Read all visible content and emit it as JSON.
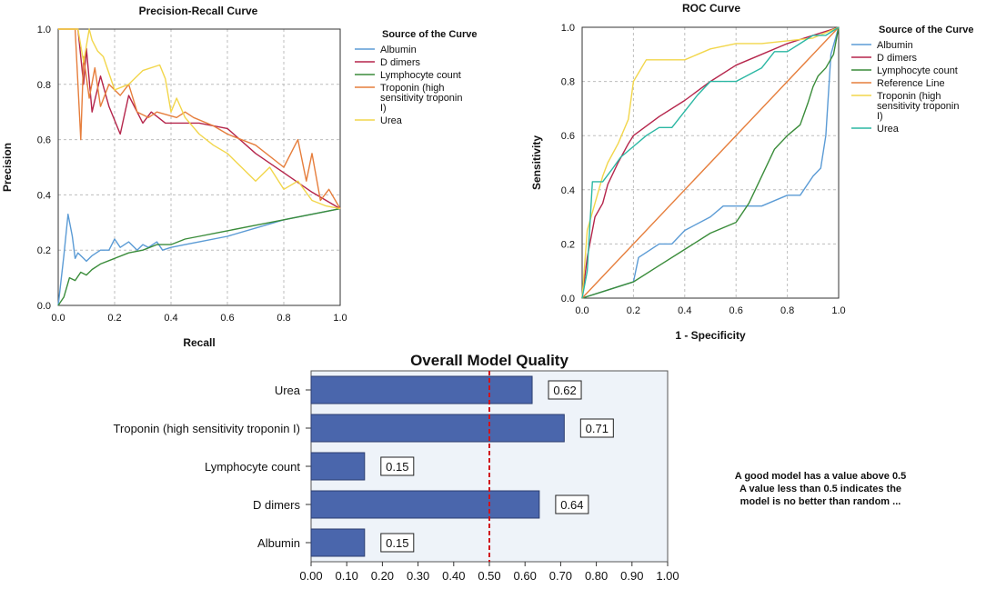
{
  "chart_data": [
    {
      "type": "line",
      "title": "Precision-Recall Curve",
      "xlabel": "Recall",
      "ylabel": "Precision",
      "xlim": [
        0,
        1
      ],
      "ylim": [
        0,
        1
      ],
      "xticks": [
        "0.0",
        "0.2",
        "0.4",
        "0.6",
        "0.8",
        "1.0"
      ],
      "yticks": [
        "0.0",
        "0.2",
        "0.4",
        "0.6",
        "0.8",
        "1.0"
      ],
      "legend_title": "Source of the Curve",
      "legend": [
        "Albumin",
        "D dimers",
        "Lymphocyte count",
        "Troponin (high sensitivity troponin I)",
        "Urea"
      ],
      "series": [
        {
          "name": "Albumin",
          "color": "#5b9bd5",
          "x": [
            0,
            0.02,
            0.035,
            0.05,
            0.06,
            0.07,
            0.09,
            0.1,
            0.12,
            0.15,
            0.18,
            0.2,
            0.22,
            0.25,
            0.28,
            0.3,
            0.32,
            0.35,
            0.37,
            0.4,
            0.45,
            0.5,
            0.6,
            0.7,
            0.8,
            0.9,
            1.0
          ],
          "y": [
            0,
            0.18,
            0.33,
            0.25,
            0.17,
            0.19,
            0.17,
            0.16,
            0.18,
            0.2,
            0.2,
            0.24,
            0.21,
            0.23,
            0.2,
            0.22,
            0.21,
            0.23,
            0.2,
            0.21,
            0.22,
            0.23,
            0.25,
            0.28,
            0.31,
            0.33,
            0.35
          ]
        },
        {
          "name": "D dimers",
          "color": "#b5254b",
          "x": [
            0,
            0.07,
            0.09,
            0.1,
            0.12,
            0.15,
            0.18,
            0.22,
            0.25,
            0.3,
            0.33,
            0.38,
            0.45,
            0.5,
            0.6,
            0.7,
            0.8,
            0.9,
            1.0
          ],
          "y": [
            1.0,
            1.0,
            0.8,
            0.93,
            0.7,
            0.83,
            0.72,
            0.62,
            0.76,
            0.66,
            0.7,
            0.66,
            0.66,
            0.66,
            0.64,
            0.55,
            0.48,
            0.41,
            0.35
          ]
        },
        {
          "name": "Lymphocyte count",
          "color": "#3a8c3a",
          "x": [
            0,
            0.02,
            0.04,
            0.06,
            0.08,
            0.1,
            0.12,
            0.15,
            0.2,
            0.25,
            0.3,
            0.35,
            0.4,
            0.45,
            0.5,
            0.6,
            0.7,
            0.8,
            0.9,
            1.0
          ],
          "y": [
            0,
            0.03,
            0.1,
            0.09,
            0.12,
            0.11,
            0.13,
            0.15,
            0.17,
            0.19,
            0.2,
            0.22,
            0.22,
            0.24,
            0.25,
            0.27,
            0.29,
            0.31,
            0.33,
            0.35
          ]
        },
        {
          "name": "Troponin (high sensitivity troponin I)",
          "color": "#e67e3c",
          "x": [
            0,
            0.06,
            0.08,
            0.09,
            0.11,
            0.13,
            0.15,
            0.18,
            0.22,
            0.25,
            0.28,
            0.32,
            0.35,
            0.42,
            0.45,
            0.48,
            0.55,
            0.6,
            0.7,
            0.8,
            0.85,
            0.88,
            0.9,
            0.93,
            0.96,
            1.0
          ],
          "y": [
            1.0,
            1.0,
            0.6,
            0.9,
            0.75,
            0.86,
            0.72,
            0.8,
            0.76,
            0.8,
            0.7,
            0.68,
            0.7,
            0.68,
            0.7,
            0.68,
            0.65,
            0.62,
            0.58,
            0.5,
            0.6,
            0.45,
            0.55,
            0.38,
            0.42,
            0.35
          ]
        },
        {
          "name": "Urea",
          "color": "#f2d64b",
          "x": [
            0,
            0.07,
            0.09,
            0.11,
            0.12,
            0.14,
            0.16,
            0.2,
            0.25,
            0.3,
            0.36,
            0.38,
            0.4,
            0.42,
            0.45,
            0.5,
            0.55,
            0.6,
            0.65,
            0.7,
            0.75,
            0.8,
            0.85,
            0.9,
            0.95,
            1.0
          ],
          "y": [
            1.0,
            1.0,
            0.88,
            1.0,
            0.96,
            0.92,
            0.9,
            0.78,
            0.8,
            0.85,
            0.87,
            0.82,
            0.7,
            0.75,
            0.68,
            0.62,
            0.58,
            0.55,
            0.5,
            0.45,
            0.5,
            0.42,
            0.45,
            0.38,
            0.36,
            0.35
          ]
        }
      ]
    },
    {
      "type": "line",
      "title": "ROC Curve",
      "xlabel": "1 - Specificity",
      "ylabel": "Sensitivity",
      "xlim": [
        0,
        1
      ],
      "ylim": [
        0,
        1
      ],
      "xticks": [
        "0.0",
        "0.2",
        "0.4",
        "0.6",
        "0.8",
        "1.0"
      ],
      "yticks": [
        "0.0",
        "0.2",
        "0.4",
        "0.6",
        "0.8",
        "1.0"
      ],
      "legend_title": "Source of the Curve",
      "legend": [
        "Albumin",
        "D dimers",
        "Lymphocyte count",
        "Reference Line",
        "Troponin (high sensitivity troponin I)",
        "Urea"
      ],
      "series": [
        {
          "name": "Albumin",
          "color": "#5b9bd5",
          "x": [
            0,
            0.1,
            0.2,
            0.22,
            0.3,
            0.35,
            0.4,
            0.5,
            0.55,
            0.6,
            0.7,
            0.8,
            0.85,
            0.9,
            0.93,
            0.95,
            0.97,
            1.0
          ],
          "y": [
            0,
            0.03,
            0.06,
            0.15,
            0.2,
            0.2,
            0.25,
            0.3,
            0.34,
            0.34,
            0.34,
            0.38,
            0.38,
            0.45,
            0.48,
            0.6,
            0.9,
            1.0
          ]
        },
        {
          "name": "D dimers",
          "color": "#b5254b",
          "x": [
            0,
            0.02,
            0.05,
            0.08,
            0.1,
            0.14,
            0.18,
            0.2,
            0.3,
            0.4,
            0.5,
            0.6,
            0.7,
            0.8,
            0.9,
            1.0
          ],
          "y": [
            0,
            0.15,
            0.3,
            0.35,
            0.42,
            0.5,
            0.57,
            0.6,
            0.67,
            0.73,
            0.8,
            0.86,
            0.9,
            0.94,
            0.97,
            1.0
          ]
        },
        {
          "name": "Lymphocyte count",
          "color": "#3a8c3a",
          "x": [
            0,
            0.1,
            0.2,
            0.3,
            0.4,
            0.5,
            0.6,
            0.65,
            0.7,
            0.75,
            0.8,
            0.85,
            0.88,
            0.9,
            0.92,
            0.95,
            0.98,
            1.0
          ],
          "y": [
            0,
            0.03,
            0.06,
            0.12,
            0.18,
            0.24,
            0.28,
            0.35,
            0.45,
            0.55,
            0.6,
            0.64,
            0.72,
            0.78,
            0.82,
            0.85,
            0.9,
            1.0
          ]
        },
        {
          "name": "Reference Line",
          "color": "#e67e3c",
          "x": [
            0,
            1
          ],
          "y": [
            0,
            1
          ]
        },
        {
          "name": "Troponin (high sensitivity troponin I)",
          "color": "#f2d64b",
          "x": [
            0,
            0.02,
            0.05,
            0.08,
            0.1,
            0.14,
            0.18,
            0.2,
            0.25,
            0.3,
            0.35,
            0.4,
            0.45,
            0.5,
            0.6,
            0.7,
            0.8,
            0.9,
            1.0
          ],
          "y": [
            0,
            0.25,
            0.35,
            0.45,
            0.5,
            0.57,
            0.66,
            0.8,
            0.88,
            0.88,
            0.88,
            0.88,
            0.9,
            0.92,
            0.94,
            0.94,
            0.95,
            0.96,
            1.0
          ]
        },
        {
          "name": "Urea",
          "color": "#2bb7a3",
          "x": [
            0,
            0.02,
            0.04,
            0.08,
            0.12,
            0.15,
            0.2,
            0.25,
            0.3,
            0.35,
            0.4,
            0.45,
            0.5,
            0.6,
            0.7,
            0.75,
            0.8,
            0.85,
            0.9,
            0.95,
            1.0
          ],
          "y": [
            0,
            0.1,
            0.43,
            0.43,
            0.48,
            0.52,
            0.56,
            0.6,
            0.63,
            0.63,
            0.69,
            0.75,
            0.8,
            0.8,
            0.85,
            0.91,
            0.91,
            0.94,
            0.97,
            0.97,
            1.0
          ]
        }
      ]
    },
    {
      "type": "bar",
      "orientation": "horizontal",
      "title": "Overall Model Quality",
      "categories": [
        "Urea",
        "Troponin (high sensitivity troponin I)",
        "Lymphocyte count",
        "D dimers",
        "Albumin"
      ],
      "values": [
        0.62,
        0.71,
        0.15,
        0.64,
        0.15
      ],
      "value_labels": [
        "0.62",
        "0.71",
        "0.15",
        "0.64",
        "0.15"
      ],
      "xlim": [
        0,
        1
      ],
      "xticks": [
        "0.00",
        "0.10",
        "0.20",
        "0.30",
        "0.40",
        "0.50",
        "0.60",
        "0.70",
        "0.80",
        "0.90",
        "1.00"
      ],
      "reference_line": 0.5,
      "bar_color": "#4a66ac",
      "background_color": "#eef3f9",
      "note": [
        "A good model has a value above 0.5",
        "A value less than 0.5 indicates the",
        "model is no better than random ..."
      ]
    }
  ]
}
